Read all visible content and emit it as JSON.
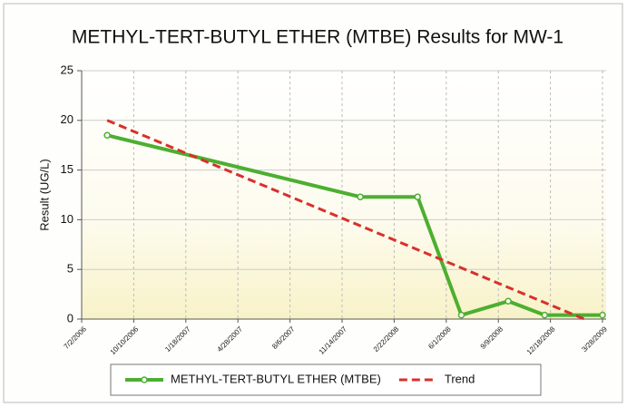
{
  "chart_data": {
    "type": "line",
    "title": "METHYL-TERT-BUTYL ETHER (MTBE) Results for MW-1",
    "y_label": "Result (UG/L)",
    "series": [
      {
        "name": "METHYL-TERT-BUTYL ETHER (MTBE)",
        "color": "#4caf30",
        "x": [
          "8/20/2006",
          "12/19/2007",
          "4/7/2008",
          "6/30/2008",
          "9/28/2008",
          "12/7/2008",
          "3/28/2009"
        ],
        "values": [
          18.5,
          12.3,
          12.3,
          0.4,
          1.8,
          0.4,
          0.4
        ]
      },
      {
        "name": "Trend",
        "color": "#d9302c",
        "x": [
          "8/20/2006",
          "2/21/2009"
        ],
        "values": [
          20,
          0
        ]
      }
    ],
    "xlim": [
      "7/2/2006",
      "3/28/2009"
    ],
    "xticks": [
      "7/2/2006",
      "10/10/2006",
      "1/18/2007",
      "4/28/2007",
      "8/6/2007",
      "11/14/2007",
      "2/22/2008",
      "6/1/2008",
      "9/9/2008",
      "12/18/2008",
      "3/28/2009"
    ],
    "ylim": [
      0,
      25
    ],
    "yticks": [
      0,
      5,
      10,
      15,
      20,
      25
    ],
    "grid": true,
    "legend": "bottom"
  }
}
